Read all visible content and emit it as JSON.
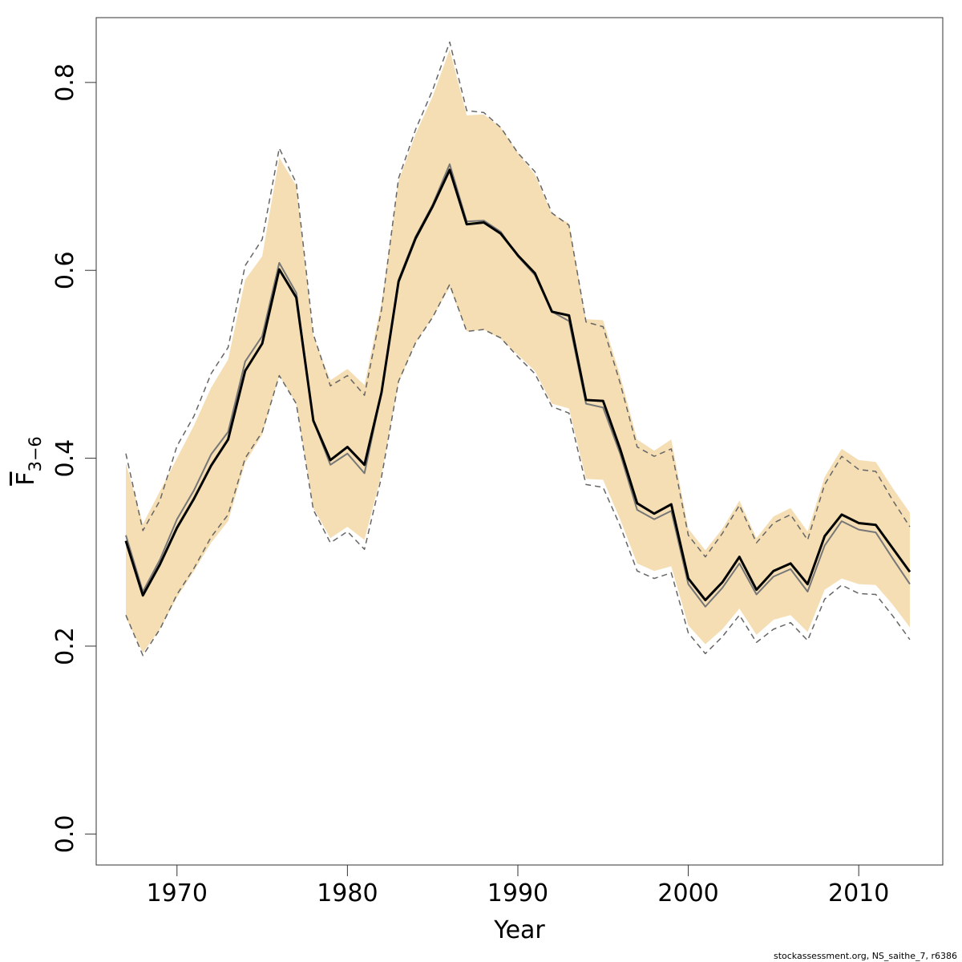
{
  "chart_data": {
    "type": "line",
    "xlabel": "Year",
    "ylabel": "F",
    "ylabel_subscript": "3−6",
    "footnote": "stockassessment.org, NS_saithe_7, r6386",
    "x": [
      1967,
      1968,
      1969,
      1970,
      1971,
      1972,
      1973,
      1974,
      1975,
      1976,
      1977,
      1978,
      1979,
      1980,
      1981,
      1982,
      1983,
      1984,
      1985,
      1986,
      1987,
      1988,
      1989,
      1990,
      1991,
      1992,
      1993,
      1994,
      1995,
      1996,
      1997,
      1998,
      1999,
      2000,
      2001,
      2002,
      2003,
      2004,
      2005,
      2006,
      2007,
      2008,
      2009,
      2010,
      2011,
      2012,
      2013
    ],
    "xlim": [
      1965.26,
      2014.93
    ],
    "xticks": [
      1970,
      1980,
      1990,
      2000,
      2010
    ],
    "ylim": [
      -0.033,
      0.869
    ],
    "yticks": [
      {
        "value": 0,
        "label": "0.0"
      },
      0.2,
      0.4,
      0.6,
      0.8
    ],
    "band": {
      "color": "#f5deb3",
      "upper": [
        0.395,
        0.33,
        0.365,
        0.4,
        0.435,
        0.475,
        0.505,
        0.59,
        0.615,
        0.72,
        0.69,
        0.53,
        0.483,
        0.495,
        0.478,
        0.565,
        0.695,
        0.745,
        0.785,
        0.835,
        0.765,
        0.766,
        0.752,
        0.725,
        0.702,
        0.66,
        0.65,
        0.548,
        0.547,
        0.488,
        0.42,
        0.408,
        0.42,
        0.325,
        0.302,
        0.325,
        0.355,
        0.315,
        0.338,
        0.347,
        0.322,
        0.38,
        0.41,
        0.398,
        0.396,
        0.368,
        0.342
      ],
      "lower": [
        0.23,
        0.193,
        0.218,
        0.252,
        0.28,
        0.31,
        0.333,
        0.395,
        0.425,
        0.488,
        0.458,
        0.347,
        0.315,
        0.327,
        0.313,
        0.383,
        0.48,
        0.523,
        0.55,
        0.582,
        0.535,
        0.537,
        0.527,
        0.51,
        0.493,
        0.458,
        0.453,
        0.378,
        0.377,
        0.335,
        0.288,
        0.28,
        0.285,
        0.222,
        0.202,
        0.218,
        0.24,
        0.212,
        0.228,
        0.233,
        0.215,
        0.26,
        0.272,
        0.266,
        0.265,
        0.244,
        0.22
      ]
    },
    "series": [
      {
        "color": "#666666",
        "dash": true,
        "width": 1.5,
        "values": [
          0.405,
          0.323,
          0.355,
          0.413,
          0.445,
          0.49,
          0.518,
          0.605,
          0.633,
          0.73,
          0.693,
          0.532,
          0.477,
          0.488,
          0.467,
          0.558,
          0.698,
          0.75,
          0.792,
          0.843,
          0.77,
          0.768,
          0.752,
          0.725,
          0.705,
          0.661,
          0.648,
          0.545,
          0.54,
          0.48,
          0.412,
          0.402,
          0.41,
          0.318,
          0.295,
          0.32,
          0.35,
          0.31,
          0.331,
          0.34,
          0.313,
          0.372,
          0.402,
          0.388,
          0.386,
          0.355,
          0.327
        ]
      },
      {
        "color": "#666666",
        "dash": true,
        "width": 1.5,
        "values": [
          0.233,
          0.19,
          0.218,
          0.255,
          0.283,
          0.316,
          0.34,
          0.4,
          0.428,
          0.488,
          0.458,
          0.345,
          0.31,
          0.322,
          0.303,
          0.38,
          0.482,
          0.523,
          0.55,
          0.585,
          0.535,
          0.537,
          0.528,
          0.508,
          0.49,
          0.455,
          0.448,
          0.372,
          0.369,
          0.328,
          0.28,
          0.272,
          0.278,
          0.214,
          0.192,
          0.21,
          0.233,
          0.204,
          0.218,
          0.225,
          0.206,
          0.25,
          0.265,
          0.256,
          0.255,
          0.232,
          0.207
        ]
      },
      {
        "color": "#777777",
        "dash": false,
        "width": 2,
        "values": [
          0.318,
          0.258,
          0.292,
          0.335,
          0.366,
          0.404,
          0.428,
          0.503,
          0.53,
          0.608,
          0.576,
          0.44,
          0.393,
          0.405,
          0.384,
          0.47,
          0.59,
          0.636,
          0.67,
          0.713,
          0.652,
          0.653,
          0.641,
          0.615,
          0.595,
          0.556,
          0.546,
          0.458,
          0.454,
          0.405,
          0.345,
          0.335,
          0.344,
          0.266,
          0.242,
          0.262,
          0.288,
          0.255,
          0.274,
          0.282,
          0.258,
          0.307,
          0.333,
          0.324,
          0.321,
          0.293,
          0.266
        ]
      },
      {
        "color": "#000000",
        "dash": false,
        "width": 3,
        "values": [
          0.312,
          0.254,
          0.287,
          0.326,
          0.357,
          0.392,
          0.42,
          0.493,
          0.522,
          0.601,
          0.571,
          0.44,
          0.398,
          0.412,
          0.393,
          0.47,
          0.588,
          0.634,
          0.668,
          0.707,
          0.649,
          0.651,
          0.639,
          0.616,
          0.597,
          0.556,
          0.552,
          0.462,
          0.461,
          0.41,
          0.352,
          0.341,
          0.351,
          0.272,
          0.249,
          0.268,
          0.295,
          0.26,
          0.28,
          0.288,
          0.266,
          0.317,
          0.34,
          0.331,
          0.329,
          0.304,
          0.279
        ]
      }
    ]
  }
}
